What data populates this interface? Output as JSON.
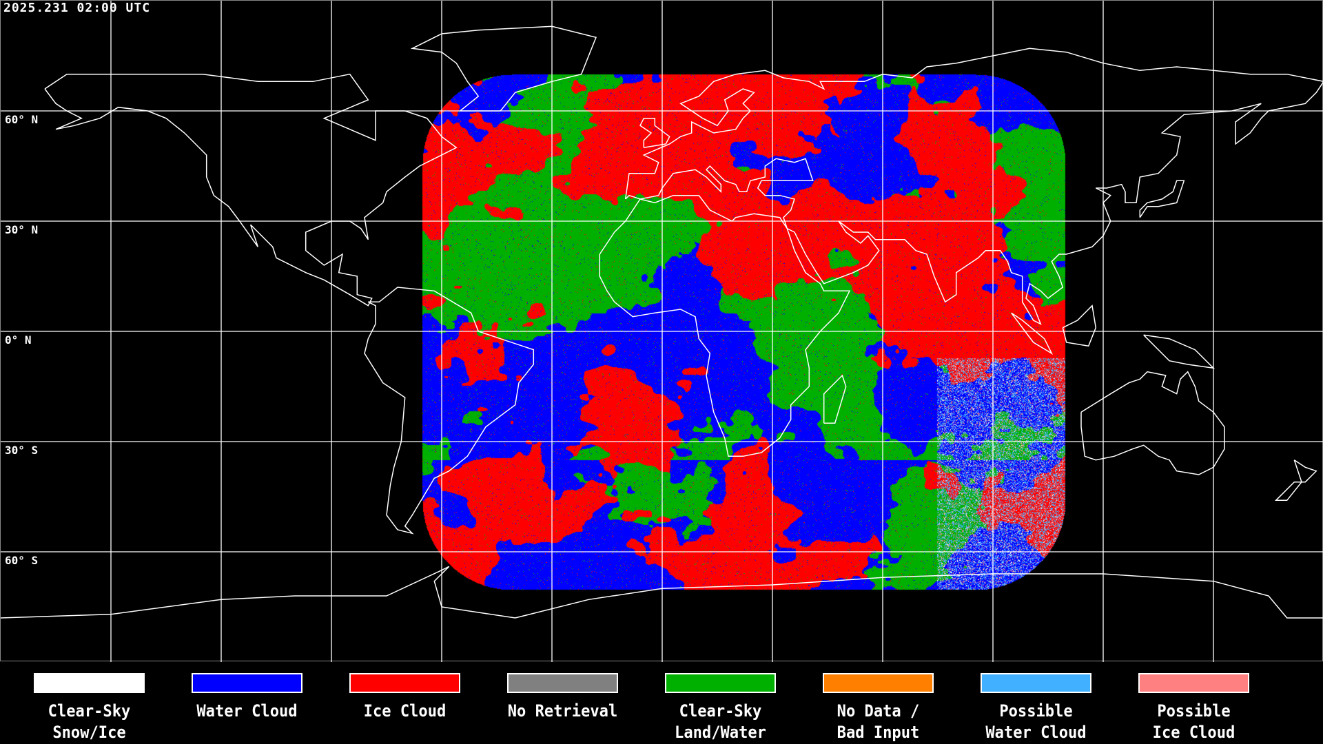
{
  "title": "2025.231 02:00 UTC",
  "lat_labels": [
    "60° N",
    "30° N",
    "0° N",
    "30° S",
    "60° S"
  ],
  "legend": [
    {
      "line1": "Clear-Sky",
      "line2": "Snow/Ice",
      "color": "#ffffff"
    },
    {
      "line1": "Water Cloud",
      "line2": "",
      "color": "#0000ff"
    },
    {
      "line1": "Ice Cloud",
      "line2": "",
      "color": "#ff0000"
    },
    {
      "line1": "No Retrieval",
      "line2": "",
      "color": "#808080"
    },
    {
      "line1": "Clear-Sky",
      "line2": "Land/Water",
      "color": "#00b000"
    },
    {
      "line1": "No Data /",
      "line2": "Bad Input",
      "color": "#ff8000"
    },
    {
      "line1": "Possible",
      "line2": "Water Cloud",
      "color": "#40b0ff"
    },
    {
      "line1": "Possible",
      "line2": "Ice Cloud",
      "color": "#ff8080"
    }
  ]
}
